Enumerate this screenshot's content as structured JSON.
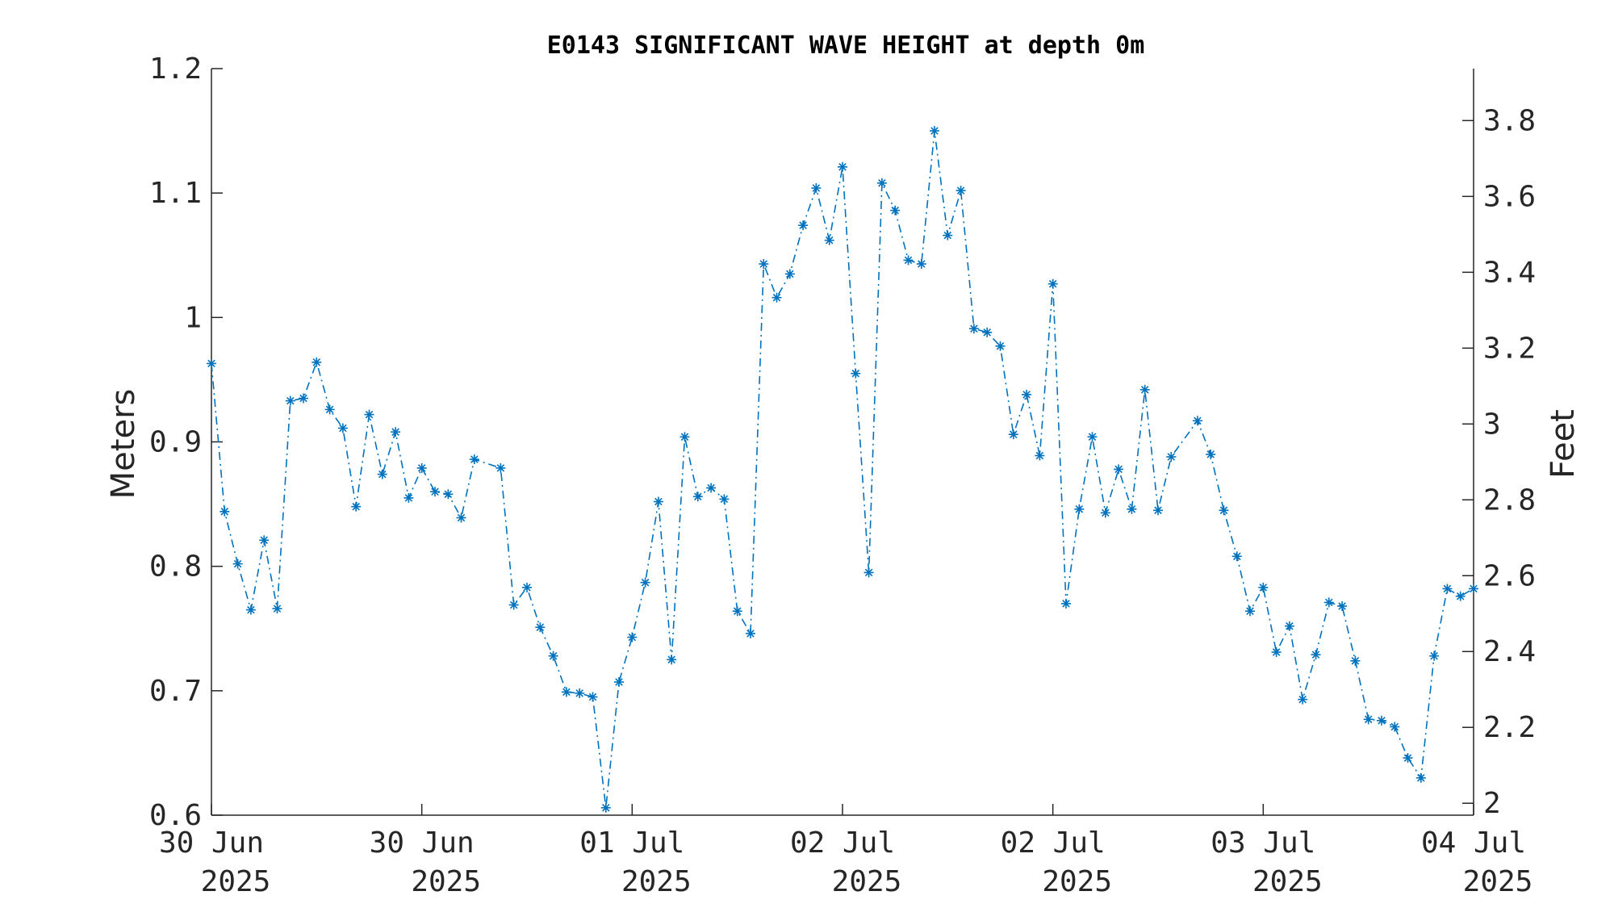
{
  "chart_data": {
    "type": "line",
    "title": "E0143 SIGNIFICANT WAVE HEIGHT at depth 0m",
    "xlabel": "",
    "ylabel": "Meters",
    "y2label": "Feet",
    "ylim": [
      0.6,
      1.2
    ],
    "y2lim": [
      1.9685,
      3.937
    ],
    "y_ticks": [
      "0.6",
      "0.7",
      "0.8",
      "0.9",
      "1",
      "1.1",
      "1.2"
    ],
    "y2_ticks": [
      "2",
      "2.2",
      "2.4",
      "2.6",
      "2.8",
      "3",
      "3.2",
      "3.4",
      "3.6",
      "3.8"
    ],
    "x_range": [
      "2025-06-30 00:00",
      "2025-07-04 00:00"
    ],
    "x_ticks": [
      {
        "line1": "30 Jun",
        "line2": "2025"
      },
      {
        "line1": "30 Jun",
        "line2": "2025"
      },
      {
        "line1": "01 Jul",
        "line2": "2025"
      },
      {
        "line1": "02 Jul",
        "line2": "2025"
      },
      {
        "line1": "02 Jul",
        "line2": "2025"
      },
      {
        "line1": "03 Jul",
        "line2": "2025"
      },
      {
        "line1": "04 Jul",
        "line2": "2025"
      }
    ],
    "grid": false,
    "series": [
      {
        "color": "#0072BD",
        "marker": "asterisk",
        "line_style": "dash-dot",
        "x": [
          "2025-06-30 00:00",
          "2025-06-30 01:00",
          "2025-06-30 02:00",
          "2025-06-30 03:00",
          "2025-06-30 04:00",
          "2025-06-30 05:00",
          "2025-06-30 06:00",
          "2025-06-30 07:00",
          "2025-06-30 08:00",
          "2025-06-30 09:00",
          "2025-06-30 10:00",
          "2025-06-30 11:00",
          "2025-06-30 12:00",
          "2025-06-30 13:00",
          "2025-06-30 14:00",
          "2025-06-30 15:00",
          "2025-06-30 16:00",
          "2025-06-30 17:00",
          "2025-06-30 18:00",
          "2025-06-30 19:00",
          "2025-06-30 20:00",
          "2025-06-30 22:00",
          "2025-06-30 23:00",
          "2025-07-01 00:00",
          "2025-07-01 01:00",
          "2025-07-01 02:00",
          "2025-07-01 03:00",
          "2025-07-01 04:00",
          "2025-07-01 05:00",
          "2025-07-01 06:00",
          "2025-07-01 07:00",
          "2025-07-01 08:00",
          "2025-07-01 09:00",
          "2025-07-01 10:00",
          "2025-07-01 11:00",
          "2025-07-01 12:00",
          "2025-07-01 13:00",
          "2025-07-01 14:00",
          "2025-07-01 15:00",
          "2025-07-01 16:00",
          "2025-07-01 17:00",
          "2025-07-01 18:00",
          "2025-07-01 19:00",
          "2025-07-01 20:00",
          "2025-07-01 21:00",
          "2025-07-01 22:00",
          "2025-07-01 23:00",
          "2025-07-02 00:00",
          "2025-07-02 01:00",
          "2025-07-02 02:00",
          "2025-07-02 03:00",
          "2025-07-02 04:00",
          "2025-07-02 05:00",
          "2025-07-02 06:00",
          "2025-07-02 07:00",
          "2025-07-02 08:00",
          "2025-07-02 09:00",
          "2025-07-02 10:00",
          "2025-07-02 11:00",
          "2025-07-02 12:00",
          "2025-07-02 13:00",
          "2025-07-02 14:00",
          "2025-07-02 15:00",
          "2025-07-02 16:00",
          "2025-07-02 17:00",
          "2025-07-02 18:00",
          "2025-07-02 19:00",
          "2025-07-02 20:00",
          "2025-07-02 21:00",
          "2025-07-02 22:00",
          "2025-07-02 23:00",
          "2025-07-03 00:00",
          "2025-07-03 01:00",
          "2025-07-03 03:00",
          "2025-07-03 04:00",
          "2025-07-03 05:00",
          "2025-07-03 06:00",
          "2025-07-03 07:00",
          "2025-07-03 08:00",
          "2025-07-03 09:00",
          "2025-07-03 10:00",
          "2025-07-03 11:00",
          "2025-07-03 12:00",
          "2025-07-03 13:00",
          "2025-07-03 14:00",
          "2025-07-03 15:00",
          "2025-07-03 16:00",
          "2025-07-03 17:00",
          "2025-07-03 18:00",
          "2025-07-03 19:00",
          "2025-07-03 20:00",
          "2025-07-03 21:00",
          "2025-07-03 22:00",
          "2025-07-03 23:00",
          "2025-07-04 00:00"
        ],
        "y": [
          0.963,
          0.844,
          0.802,
          0.765,
          0.821,
          0.766,
          0.933,
          0.935,
          0.964,
          0.926,
          0.911,
          0.848,
          0.922,
          0.874,
          0.908,
          0.855,
          0.879,
          0.86,
          0.858,
          0.839,
          0.886,
          0.879,
          0.769,
          0.783,
          0.751,
          0.728,
          0.699,
          0.698,
          0.695,
          0.606,
          0.707,
          0.743,
          0.787,
          0.852,
          0.725,
          0.904,
          0.856,
          0.863,
          0.854,
          0.764,
          0.746,
          1.043,
          1.016,
          1.035,
          1.074,
          1.104,
          1.062,
          1.121,
          0.955,
          0.795,
          1.108,
          1.086,
          1.046,
          1.043,
          1.15,
          1.066,
          1.102,
          0.991,
          0.988,
          0.977,
          0.906,
          0.938,
          0.889,
          1.027,
          0.77,
          0.846,
          0.904,
          0.843,
          0.878,
          0.846,
          0.942,
          0.845,
          0.888,
          0.917,
          0.89,
          0.845,
          0.808,
          0.764,
          0.783,
          0.731,
          0.752,
          0.693,
          0.729,
          0.771,
          0.768,
          0.724,
          0.677,
          0.676,
          0.671,
          0.646,
          0.63,
          0.728,
          0.782,
          0.776,
          0.782
        ]
      }
    ]
  }
}
